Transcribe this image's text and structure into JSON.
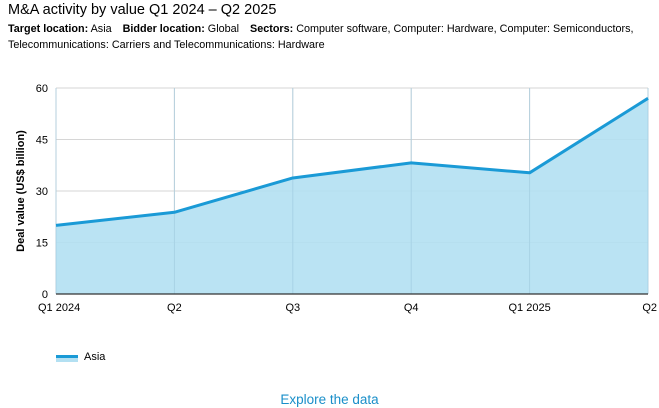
{
  "title": "M&A activity by value Q1 2024 – Q2 2025",
  "filters": [
    {
      "label": "Target location:",
      "value": "Asia"
    },
    {
      "label": "Bidder location:",
      "value": "Global"
    },
    {
      "label": "Sectors:",
      "value": "Computer software, Computer: Hardware, Computer: Semiconductors, Telecommunications: Carriers and Telecommunications: Hardware"
    }
  ],
  "chart_data": {
    "type": "area",
    "categories": [
      "Q1 2024",
      "Q2",
      "Q3",
      "Q4",
      "Q1 2025",
      "Q2"
    ],
    "series": [
      {
        "name": "Asia",
        "values": [
          20.0,
          23.8,
          33.8,
          38.2,
          35.3,
          57.0
        ]
      }
    ],
    "ylabel": "Deal value (US$ billion)",
    "xlabel": "",
    "ylim": [
      0,
      60
    ],
    "yticks": [
      0,
      15,
      30,
      45,
      60
    ],
    "grid": true,
    "legend_position": "bottom-left",
    "colors": {
      "line": "#1a9ad6",
      "fill": "#b3e0f2",
      "grid": "#d6d6d6",
      "axis": "#333333"
    }
  },
  "explore_link": "Explore the data"
}
